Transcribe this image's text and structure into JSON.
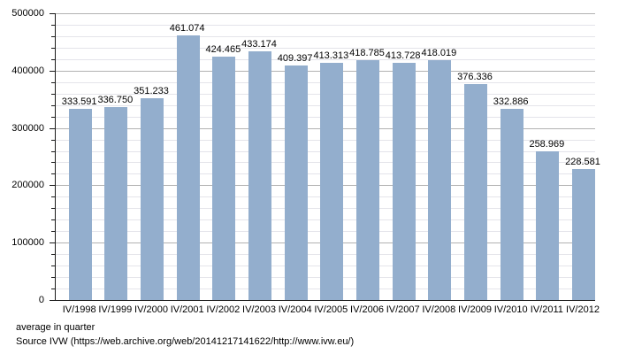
{
  "chart_data": {
    "type": "bar",
    "categories": [
      "IV/1998",
      "IV/1999",
      "IV/2000",
      "IV/2001",
      "IV/2002",
      "IV/2003",
      "IV/2004",
      "IV/2005",
      "IV/2006",
      "IV/2007",
      "IV/2008",
      "IV/2009",
      "IV/2010",
      "IV/2011",
      "IV/2012"
    ],
    "values": [
      333591,
      336750,
      351233,
      461074,
      424465,
      433174,
      409397,
      413313,
      418785,
      413728,
      418019,
      376336,
      332886,
      258969,
      228581
    ],
    "value_labels": [
      "333.591",
      "336.750",
      "351.233",
      "461.074",
      "424.465",
      "433.174",
      "409.397",
      "413.313",
      "418.785",
      "413.728",
      "418.019",
      "376.336",
      "332.886",
      "258.969",
      "228.581"
    ],
    "title": "",
    "xlabel": "",
    "ylabel": "",
    "ylim": [
      0,
      500000
    ],
    "y_major_step": 100000,
    "y_minor_step": 20000,
    "y_tick_labels": [
      "0",
      "100000",
      "200000",
      "300000",
      "400000",
      "500000"
    ],
    "grid": true,
    "legend": "none",
    "colors": {
      "bar_fill": "#93aecd",
      "major_grid": "#b2b2b2",
      "minor_grid": "#e4e4ea",
      "axis": "#1a1a1a",
      "text": "#000000"
    }
  },
  "footer": {
    "line1": "average in quarter",
    "line2": "Source IVW (https://web.archive.org/web/20141217141622/http://www.ivw.eu/)"
  }
}
